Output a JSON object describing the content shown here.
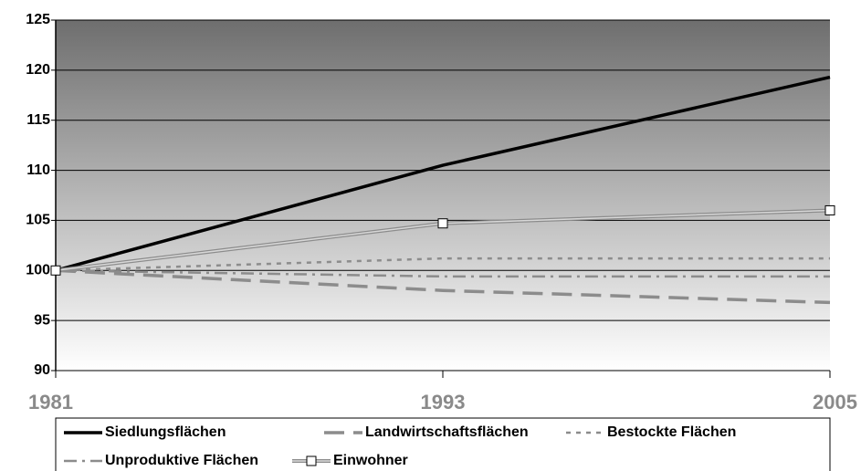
{
  "chart_data": {
    "type": "line",
    "x": [
      1981,
      1993,
      2005
    ],
    "xlim": [
      1981,
      2005
    ],
    "xticks": [
      1981,
      1993,
      2005
    ],
    "ylim": [
      90,
      125
    ],
    "yticks": [
      90,
      95,
      100,
      105,
      110,
      115,
      120,
      125
    ],
    "grid": true,
    "series": [
      {
        "name": "Siedlungsflächen",
        "color": "#000000",
        "line_style": "solid",
        "values": [
          100,
          110.5,
          119.3
        ]
      },
      {
        "name": "Landwirtschaftsflächen",
        "color": "#8c8c8c",
        "line_style": "long-dash",
        "values": [
          100,
          98,
          96.8
        ]
      },
      {
        "name": "Bestockte Flächen",
        "color": "#8c8c8c",
        "line_style": "dotted",
        "values": [
          100,
          101.2,
          101.2
        ]
      },
      {
        "name": "Unproduktive Flächen",
        "color": "#8c8c8c",
        "line_style": "dash-dot",
        "values": [
          100,
          99.4,
          99.4
        ]
      },
      {
        "name": "Einwohner",
        "color": "#8c8c8c",
        "line_style": "double",
        "marker": "square",
        "values": [
          100,
          104.7,
          106
        ]
      }
    ]
  }
}
